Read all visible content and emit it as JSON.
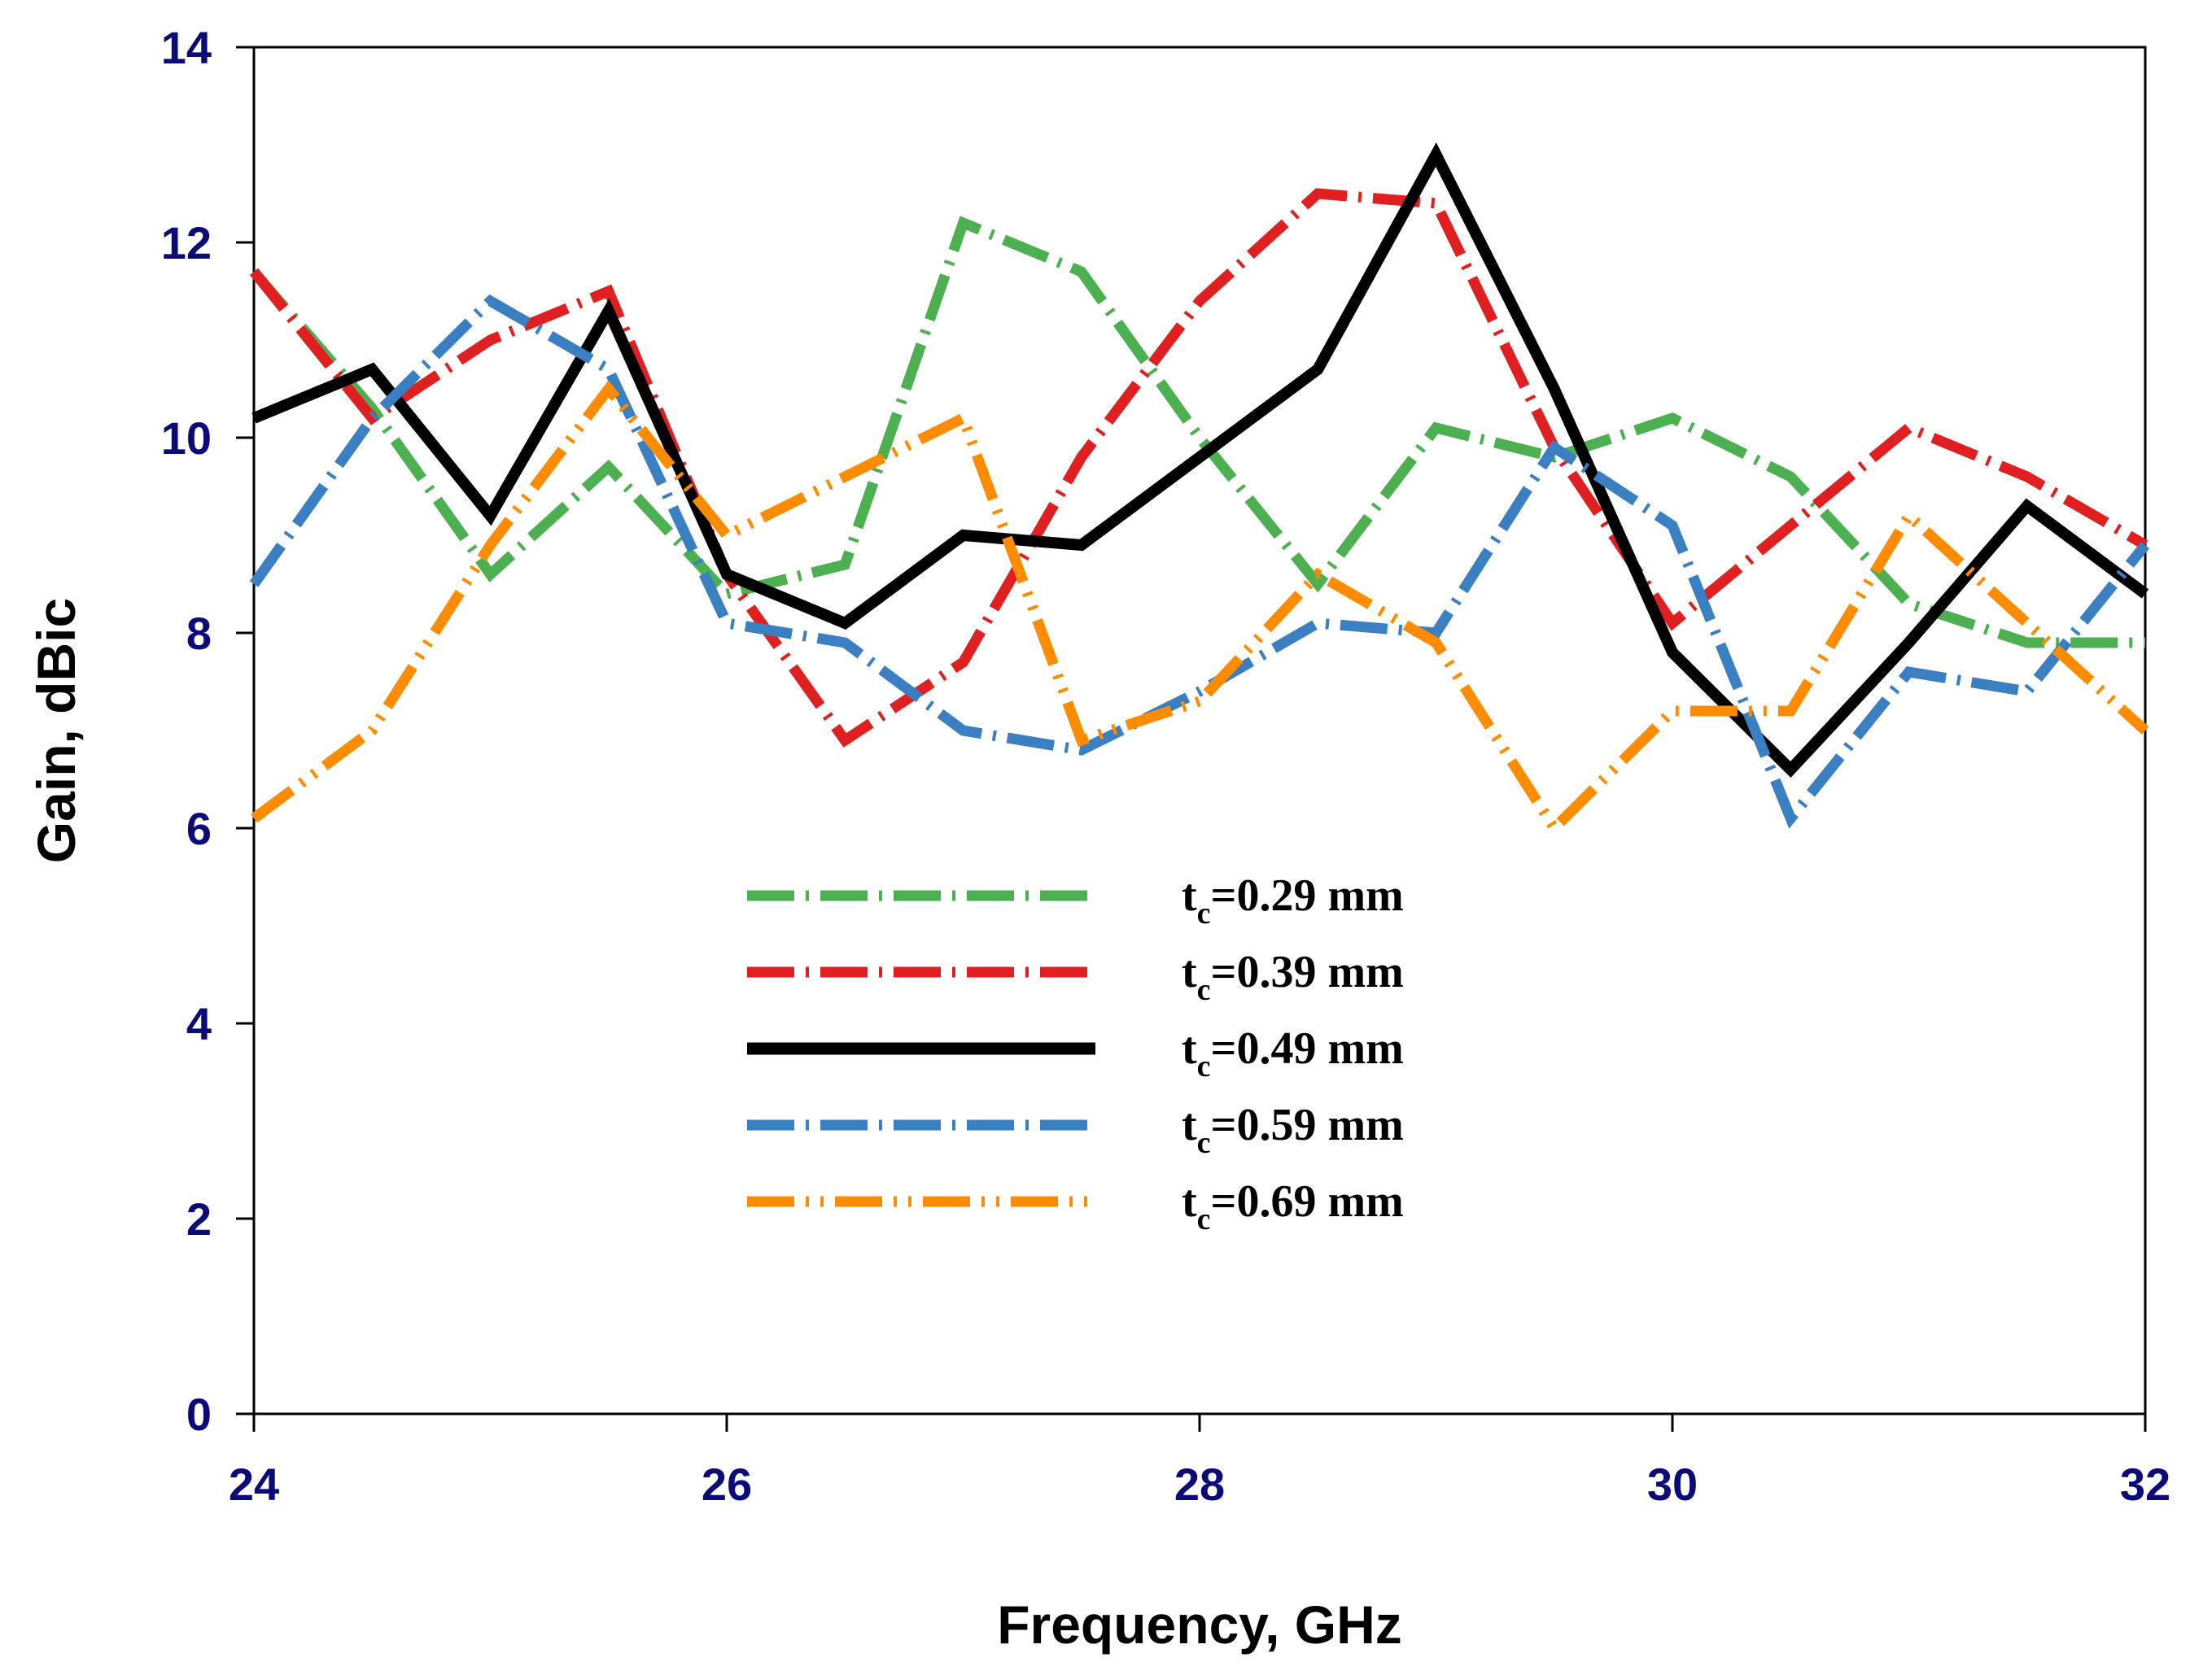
{
  "chart_data": {
    "type": "line",
    "title": "",
    "xlabel": "Frequency, GHz",
    "ylabel": "Gain, dBic",
    "xlim": [
      24,
      32
    ],
    "ylim": [
      0,
      14
    ],
    "xticks": [
      24,
      26,
      28,
      30,
      32
    ],
    "yticks": [
      0,
      2,
      4,
      6,
      8,
      10,
      12,
      14
    ],
    "grid": false,
    "legend_position": "center",
    "x": [
      24,
      24.5,
      25,
      25.5,
      26,
      26.5,
      27,
      27.5,
      28,
      28.5,
      29,
      29.5,
      30,
      30.5,
      31,
      31.5,
      32
    ],
    "series": [
      {
        "name": "tc=0.29 mm",
        "label_main": "t",
        "label_sub": "c",
        "label_rest": "=0.29 mm",
        "color": "#4caf50",
        "style": "dash-dot",
        "values": [
          11.7,
          10.3,
          8.6,
          9.7,
          8.4,
          8.7,
          12.2,
          11.7,
          10.0,
          8.5,
          10.1,
          9.8,
          10.2,
          9.6,
          8.3,
          7.9,
          7.9
        ]
      },
      {
        "name": "tc=0.39 mm",
        "label_main": "t",
        "label_sub": "c",
        "label_rest": "=0.39 mm",
        "color": "#e02020",
        "style": "dash-dot",
        "values": [
          11.7,
          10.2,
          11.0,
          11.5,
          8.6,
          6.9,
          7.7,
          9.8,
          11.4,
          12.5,
          12.4,
          9.9,
          8.1,
          9.1,
          10.1,
          9.6,
          8.9
        ]
      },
      {
        "name": "tc=0.49 mm",
        "label_main": "t",
        "label_sub": "c",
        "label_rest": "=0.49 mm",
        "color": "#000000",
        "style": "solid",
        "values": [
          10.2,
          10.7,
          9.2,
          11.3,
          8.6,
          8.1,
          9.0,
          8.9,
          9.8,
          10.7,
          12.9,
          10.5,
          7.8,
          6.6,
          7.9,
          9.3,
          8.4
        ]
      },
      {
        "name": "tc=0.59 mm",
        "label_main": "t",
        "label_sub": "c",
        "label_rest": "=0.59 mm",
        "color": "#3a7fc1",
        "style": "dash-dot",
        "values": [
          8.5,
          10.2,
          11.4,
          10.7,
          8.1,
          7.9,
          7.0,
          6.8,
          7.4,
          8.1,
          8.0,
          9.9,
          9.1,
          6.1,
          7.6,
          7.4,
          8.9
        ]
      },
      {
        "name": "tc=0.69 mm",
        "label_main": "t",
        "label_sub": "c",
        "label_rest": "=0.69 mm",
        "color": "#ff8c00",
        "style": "dash-dot-dot",
        "values": [
          6.1,
          7.0,
          8.9,
          10.5,
          9.0,
          9.6,
          10.2,
          6.9,
          7.3,
          8.6,
          7.9,
          6.0,
          7.2,
          7.2,
          9.2,
          8.1,
          7.0
        ]
      }
    ]
  }
}
